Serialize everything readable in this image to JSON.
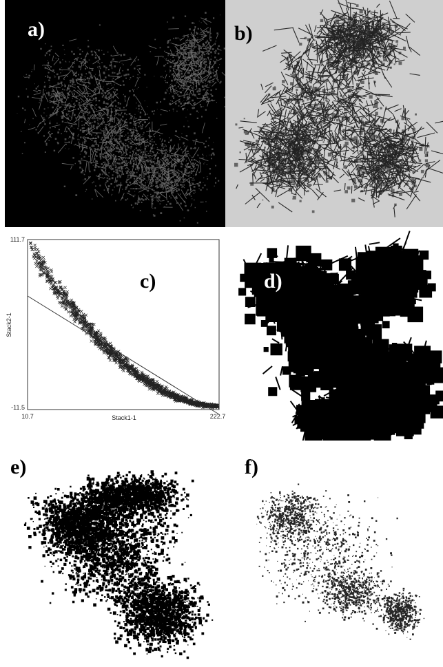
{
  "panels": [
    {
      "label": "a)"
    },
    {
      "label": "b)"
    },
    {
      "label": "c)",
      "plot": {
        "y_max": "111.7",
        "y_min": "-11.5",
        "x_min": "10.7",
        "x_max": "222.7",
        "x_label": "Stack1-1",
        "y_label": "Stack2-1"
      }
    },
    {
      "label": "d)"
    },
    {
      "label": "e)"
    },
    {
      "label": "f)"
    }
  ]
}
